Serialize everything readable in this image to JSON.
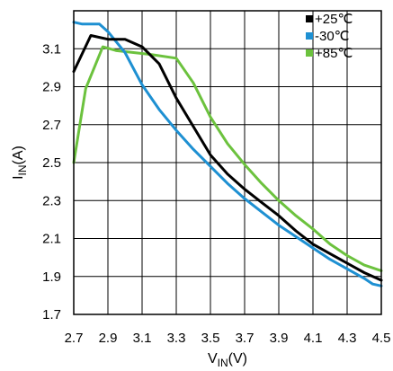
{
  "chart_data": {
    "type": "line",
    "xlabel": "V",
    "xlabel_sub": "IN",
    "xlabel_unit": "(V)",
    "ylabel": "I",
    "ylabel_sub": "IN",
    "ylabel_unit": "(A)",
    "xlim": [
      2.7,
      4.5
    ],
    "ylim": [
      1.7,
      3.3
    ],
    "xticks": [
      2.7,
      2.9,
      3.1,
      3.3,
      3.5,
      3.7,
      3.9,
      4.1,
      4.3,
      4.5
    ],
    "xtick_labels": [
      "2.7",
      "2.9",
      "3.1",
      "3.3",
      "3.5",
      "3.7",
      "3.9",
      "4.1",
      "4.3",
      "4.5"
    ],
    "yticks": [
      1.7,
      1.9,
      2.1,
      2.3,
      2.5,
      2.7,
      2.9,
      3.1
    ],
    "ytick_labels": [
      "1.7",
      "1.9",
      "2.1",
      "2.3",
      "2.5",
      "2.7",
      "2.9",
      "3.1"
    ],
    "grid": true,
    "legend_position": "top-right",
    "series": [
      {
        "name": "+25℃",
        "color": "#000000",
        "x": [
          2.7,
          2.8,
          2.9,
          3.0,
          3.1,
          3.2,
          3.3,
          3.4,
          3.5,
          3.6,
          3.7,
          3.8,
          3.9,
          4.0,
          4.1,
          4.2,
          4.3,
          4.4,
          4.5
        ],
        "y": [
          2.98,
          3.17,
          3.15,
          3.15,
          3.11,
          3.02,
          2.84,
          2.69,
          2.54,
          2.44,
          2.36,
          2.29,
          2.22,
          2.14,
          2.07,
          2.02,
          1.97,
          1.92,
          1.88
        ]
      },
      {
        "name": "-30℃",
        "color": "#1E90D2",
        "x": [
          2.7,
          2.75,
          2.85,
          2.9,
          3.0,
          3.1,
          3.2,
          3.3,
          3.4,
          3.5,
          3.6,
          3.7,
          3.8,
          3.9,
          4.0,
          4.1,
          4.2,
          4.3,
          4.4,
          4.45,
          4.5
        ],
        "y": [
          3.24,
          3.23,
          3.23,
          3.19,
          3.08,
          2.91,
          2.78,
          2.67,
          2.57,
          2.48,
          2.39,
          2.31,
          2.24,
          2.17,
          2.11,
          2.05,
          1.99,
          1.94,
          1.89,
          1.86,
          1.85
        ]
      },
      {
        "name": "+85℃",
        "color": "#6CC23E",
        "x": [
          2.7,
          2.77,
          2.87,
          2.95,
          3.05,
          3.15,
          3.3,
          3.4,
          3.5,
          3.6,
          3.7,
          3.8,
          3.9,
          4.0,
          4.1,
          4.2,
          4.3,
          4.4,
          4.5
        ],
        "y": [
          2.5,
          2.89,
          3.11,
          3.09,
          3.08,
          3.07,
          3.05,
          2.92,
          2.74,
          2.6,
          2.49,
          2.39,
          2.3,
          2.22,
          2.15,
          2.07,
          2.01,
          1.96,
          1.93
        ]
      }
    ]
  }
}
